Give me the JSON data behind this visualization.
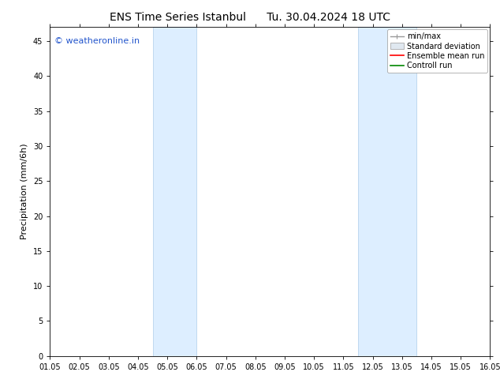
{
  "title_left": "ENS Time Series Istanbul",
  "title_right": "Tu. 30.04.2024 18 UTC",
  "ylabel": "Precipitation (mm/6h)",
  "xlim": [
    0,
    15
  ],
  "ylim": [
    0,
    47
  ],
  "yticks": [
    0,
    5,
    10,
    15,
    20,
    25,
    30,
    35,
    40,
    45
  ],
  "xtick_labels": [
    "01.05",
    "02.05",
    "03.05",
    "04.05",
    "05.05",
    "06.05",
    "07.05",
    "08.05",
    "09.05",
    "10.05",
    "11.05",
    "12.05",
    "13.05",
    "14.05",
    "15.05",
    "16.05"
  ],
  "xtick_positions": [
    0,
    1,
    2,
    3,
    4,
    5,
    6,
    7,
    8,
    9,
    10,
    11,
    12,
    13,
    14,
    15
  ],
  "shaded_bands": [
    {
      "xmin": 3.5,
      "xmax": 5.0
    },
    {
      "xmin": 10.5,
      "xmax": 12.5
    }
  ],
  "band_color": "#ddeeff",
  "band_edge_color": "#b8d4ee",
  "watermark": "© weatheronline.in",
  "watermark_color": "#2255cc",
  "watermark_fontsize": 8,
  "legend_entries": [
    "min/max",
    "Standard deviation",
    "Ensemble mean run",
    "Controll run"
  ],
  "legend_line_colors": [
    "#999999",
    "#cccccc",
    "#ff0000",
    "#008800"
  ],
  "title_fontsize": 10,
  "axis_label_fontsize": 8,
  "tick_fontsize": 7,
  "legend_fontsize": 7,
  "background_color": "#ffffff",
  "plot_bg_color": "#ffffff"
}
